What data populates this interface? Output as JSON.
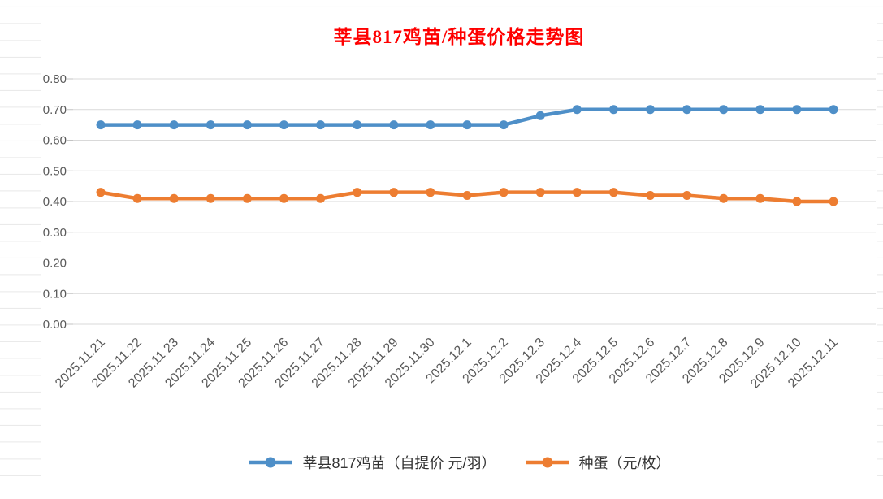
{
  "chart_data": {
    "type": "line",
    "title": "莘县817鸡苗/种蛋价格走势图",
    "title_color": "#ff0000",
    "categories": [
      "2025.11.21",
      "2025.11.22",
      "2025.11.23",
      "2025.11.24",
      "2025.11.25",
      "2025.11.26",
      "2025.11.27",
      "2025.11.28",
      "2025.11.29",
      "2025.11.30",
      "2025.12.1",
      "2025.12.2",
      "2025.12.3",
      "2025.12.4",
      "2025.12.5",
      "2025.12.6",
      "2025.12.7",
      "2025.12.8",
      "2025.12.9",
      "2025.12.10",
      "2025.12.11"
    ],
    "series": [
      {
        "name": "莘县817鸡苗（自提价 元/羽）",
        "color": "#4e8fc8",
        "values": [
          0.65,
          0.65,
          0.65,
          0.65,
          0.65,
          0.65,
          0.65,
          0.65,
          0.65,
          0.65,
          0.65,
          0.65,
          0.68,
          0.7,
          0.7,
          0.7,
          0.7,
          0.7,
          0.7,
          0.7,
          0.7
        ]
      },
      {
        "name": "种蛋（元/枚）",
        "color": "#ed7d31",
        "values": [
          0.43,
          0.41,
          0.41,
          0.41,
          0.41,
          0.41,
          0.41,
          0.43,
          0.43,
          0.43,
          0.42,
          0.43,
          0.43,
          0.43,
          0.43,
          0.42,
          0.42,
          0.41,
          0.41,
          0.4,
          0.4
        ]
      }
    ],
    "ylim": [
      0,
      0.8
    ],
    "ytick_labels": [
      "0.00",
      "0.10",
      "0.20",
      "0.30",
      "0.40",
      "0.50",
      "0.60",
      "0.70",
      "0.80"
    ],
    "grid": true,
    "grid_color": "#d9d9d9",
    "axis_text_color": "#595959",
    "legend_position": "bottom",
    "marker": "circle"
  }
}
